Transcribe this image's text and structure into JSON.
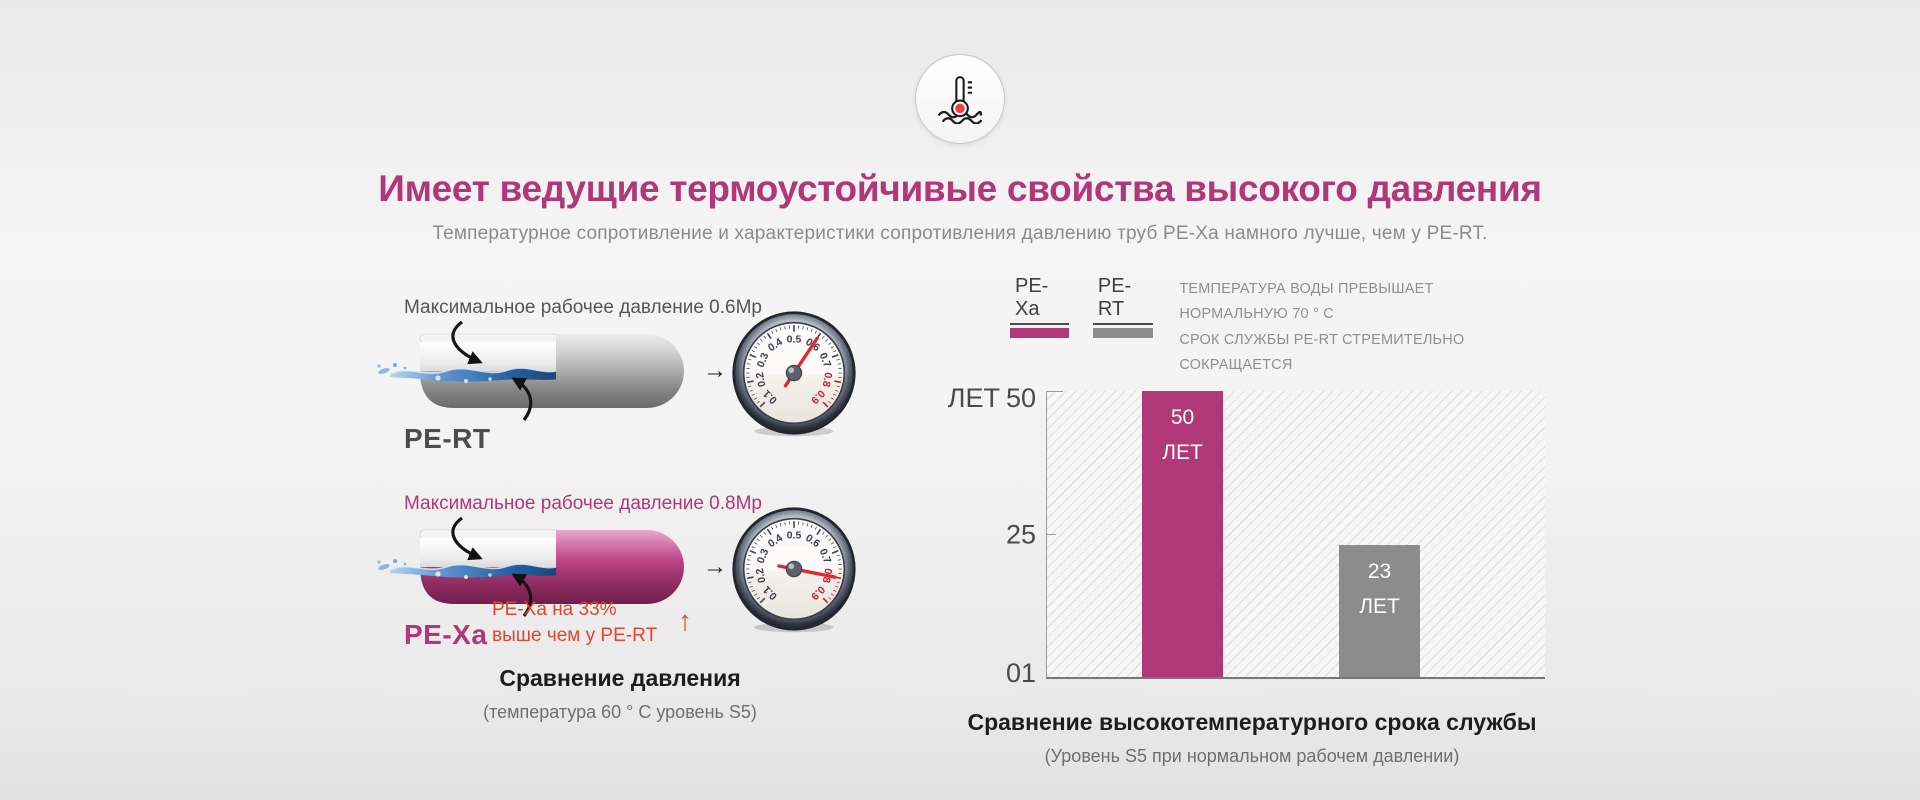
{
  "colors": {
    "magenta": "#b13878",
    "gray_bar": "#8c8c8c",
    "red": "#e0452e",
    "text_dark": "#333333",
    "text_gray": "#8a8a8a"
  },
  "header": {
    "icon": "thermometer-water-icon",
    "title": "Имеет ведущие термоустойчивые свойства высокого давления",
    "subtitle": "Температурное сопротивление и характеристики сопротивления давлению труб PE-Xa намного лучше, чем у PE-RT."
  },
  "pressure_diagram": {
    "flow_arrow": "→",
    "pipes": [
      {
        "name": "PE-RT",
        "annotation": "Максимальное рабочее давление 0.6Мр",
        "gauge_value": 0.6
      },
      {
        "name": "PE-Xa",
        "annotation": "Максимальное рабочее давление 0.8Мр",
        "gauge_value": 0.8,
        "note_line1": "PE-Xa на 33%",
        "note_line2": "выше чем у PE-RT",
        "note_arrow": "↑"
      }
    ],
    "gauge": {
      "labels": [
        "0.1",
        "0.2",
        "0.3",
        "0.4",
        "0.5",
        "0.6",
        "0.7",
        "0.8",
        "0.9"
      ],
      "red_from_index": 7,
      "min": 0.1,
      "max": 0.9
    },
    "caption": "Сравнение давления",
    "caption_sub": "(температура 60 ° C уровень S5)"
  },
  "lifespan_chart": {
    "note_line1": "ТЕМПЕРАТУРА ВОДЫ ПРЕВЫШАЕТ НОРМАЛЬНУЮ 70 ° C",
    "note_line2": "СРОК СЛУЖБЫ PE-RT СТРЕМИТЕЛЬНО СОКРАЩАЕТСЯ",
    "caption": "Сравнение высокотемпературного срока службы",
    "caption_sub": "(Уровень S5 при нормальном рабочем давлении)"
  },
  "chart_data": {
    "type": "bar",
    "categories": [
      "PE-Xa",
      "PE-RT"
    ],
    "values": [
      50,
      23
    ],
    "bar_labels": [
      [
        "50",
        "ЛЕТ"
      ],
      [
        "23",
        "ЛЕТ"
      ]
    ],
    "colors": [
      "#b13878",
      "#8c8c8c"
    ],
    "legend": [
      {
        "label": "PE-Xa",
        "color": "#b13878"
      },
      {
        "label": "PE-RT",
        "color": "#8c8c8c"
      }
    ],
    "ylabel": "ЛЕТ",
    "yticks": [
      "50",
      "25",
      "01"
    ],
    "ylim": [
      0,
      50
    ],
    "grid": false,
    "hatch_background": true,
    "legend_position": "top-left"
  }
}
